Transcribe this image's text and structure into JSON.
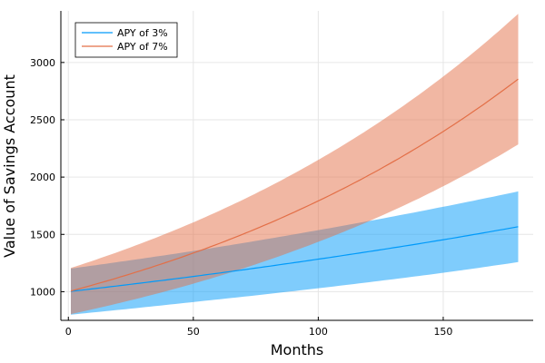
{
  "chart_data": {
    "type": "area",
    "xlabel": "Months",
    "ylabel": "Value of Savings Account",
    "xlim": [
      -3,
      186
    ],
    "ylim": [
      750,
      3450
    ],
    "xticks": [
      0,
      50,
      100,
      150
    ],
    "yticks": [
      1000,
      1500,
      2000,
      2500,
      3000
    ],
    "grid": true,
    "legend_position": "top-left",
    "x_range": [
      1,
      180
    ],
    "series": [
      {
        "name": "APY of 3%",
        "color": "#009AFA",
        "points": [
          [
            1,
            1003
          ],
          [
            50,
            1133
          ],
          [
            100,
            1284
          ],
          [
            150,
            1453
          ],
          [
            180,
            1567
          ]
        ],
        "band_lower": [
          [
            1,
            800
          ],
          [
            50,
            910
          ],
          [
            100,
            1030
          ],
          [
            150,
            1165
          ],
          [
            180,
            1258
          ]
        ],
        "band_upper": [
          [
            1,
            1202
          ],
          [
            50,
            1355
          ],
          [
            100,
            1537
          ],
          [
            150,
            1741
          ],
          [
            180,
            1875
          ]
        ]
      },
      {
        "name": "APY of 7%",
        "color": "#E36F47",
        "points": [
          [
            1,
            1006
          ],
          [
            50,
            1337
          ],
          [
            100,
            1792
          ],
          [
            150,
            2398
          ],
          [
            180,
            2855
          ]
        ],
        "band_lower": [
          [
            1,
            805
          ],
          [
            50,
            1070
          ],
          [
            100,
            1435
          ],
          [
            150,
            1920
          ],
          [
            180,
            2285
          ]
        ],
        "band_upper": [
          [
            1,
            1207
          ],
          [
            50,
            1605
          ],
          [
            100,
            2150
          ],
          [
            150,
            2877
          ],
          [
            180,
            3425
          ]
        ]
      }
    ]
  }
}
